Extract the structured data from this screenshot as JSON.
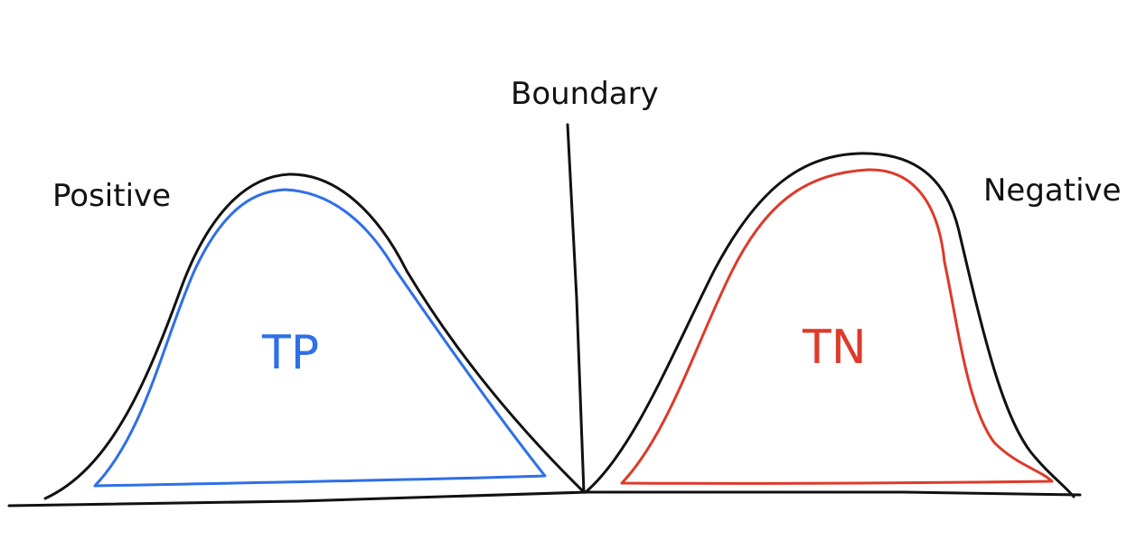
{
  "labels": {
    "boundary": "Boundary",
    "positive": "Positive",
    "negative": "Negative",
    "tp": "TP",
    "tn": "TN"
  },
  "colors": {
    "outline": "#111111",
    "tp": "#2f6fe8",
    "tn": "#dd3a2a"
  }
}
